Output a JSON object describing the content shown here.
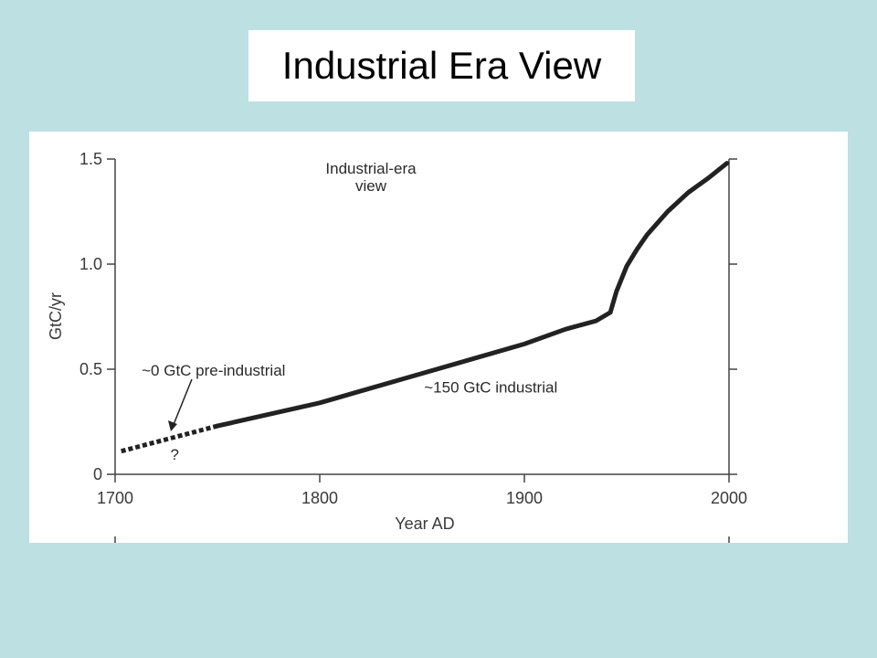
{
  "slide": {
    "title": "Industrial Era View"
  },
  "chart_data": {
    "type": "line",
    "title": "Industrial-era view",
    "xlabel": "Year AD",
    "ylabel": "GtC/yr",
    "xlim": [
      1700,
      2000
    ],
    "ylim": [
      0,
      1.5
    ],
    "x_ticks": [
      1700,
      1800,
      1900,
      2000
    ],
    "y_ticks": [
      0,
      0.5,
      1.0,
      1.5
    ],
    "y_tick_labels": [
      "0",
      "0.5",
      "1.0",
      "1.5"
    ],
    "grid": false,
    "series": [
      {
        "style": "dashed",
        "x": [
          1703,
          1750
        ],
        "y": [
          0.11,
          0.23
        ]
      },
      {
        "style": "solid",
        "x": [
          1750,
          1800,
          1850,
          1900,
          1920,
          1935,
          1942,
          1945,
          1950,
          1955,
          1960,
          1970,
          1980,
          1990,
          1999
        ],
        "y": [
          0.23,
          0.34,
          0.48,
          0.62,
          0.69,
          0.73,
          0.77,
          0.87,
          0.99,
          1.07,
          1.14,
          1.25,
          1.34,
          1.41,
          1.48
        ]
      }
    ],
    "annotations": [
      {
        "text": "~0 GtC pre-industrial",
        "x": 1713,
        "y": 0.47
      },
      {
        "text": "~150 GtC industrial",
        "x": 1851,
        "y": 0.39
      },
      {
        "text": "?",
        "x": 1727,
        "y": 0.07
      }
    ]
  }
}
